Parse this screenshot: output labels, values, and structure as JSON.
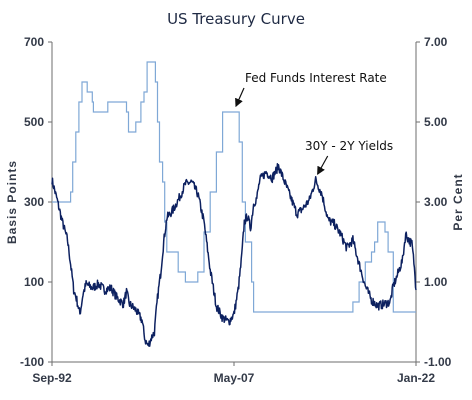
{
  "chart_data": {
    "type": "line",
    "title": "US Treasury Curve",
    "ylabel_left": "Basis Points",
    "ylabel_right": "Per Cent",
    "ylim_left": [
      -100,
      700
    ],
    "ylim_right": [
      -1.0,
      7.0
    ],
    "left_ticks": [
      "700",
      "500",
      "300",
      "100",
      "-100"
    ],
    "right_ticks": [
      "7.00",
      "5.00",
      "3.00",
      "1.00",
      "-1.00"
    ],
    "x_ticks": [
      "Sep-92",
      "May-07",
      "Jan-22"
    ],
    "x_range": [
      "1992-09",
      "2022-01"
    ],
    "grid": false,
    "series": [
      {
        "name": "30Y - 2Y Yields",
        "axis": "left",
        "color": "#0d2160",
        "points": [
          [
            "1992-09",
            355
          ],
          [
            "1993-02",
            305
          ],
          [
            "1993-07",
            250
          ],
          [
            "1993-12",
            205
          ],
          [
            "1994-03",
            145
          ],
          [
            "1994-06",
            80
          ],
          [
            "1994-09",
            55
          ],
          [
            "1994-12",
            20
          ],
          [
            "1995-03",
            70
          ],
          [
            "1995-06",
            95
          ],
          [
            "1995-09",
            90
          ],
          [
            "1995-12",
            85
          ],
          [
            "1996-06",
            95
          ],
          [
            "1996-12",
            80
          ],
          [
            "1997-06",
            85
          ],
          [
            "1997-12",
            60
          ],
          [
            "1998-06",
            45
          ],
          [
            "1998-09",
            75
          ],
          [
            "1998-12",
            45
          ],
          [
            "1999-06",
            30
          ],
          [
            "1999-12",
            5
          ],
          [
            "2000-03",
            -45
          ],
          [
            "2000-06",
            -60
          ],
          [
            "2000-09",
            -40
          ],
          [
            "2000-12",
            -25
          ],
          [
            "2001-03",
            60
          ],
          [
            "2001-06",
            120
          ],
          [
            "2001-09",
            200
          ],
          [
            "2001-12",
            260
          ],
          [
            "2002-06",
            280
          ],
          [
            "2002-12",
            310
          ],
          [
            "2003-06",
            345
          ],
          [
            "2003-12",
            350
          ],
          [
            "2004-06",
            320
          ],
          [
            "2004-12",
            250
          ],
          [
            "2005-06",
            130
          ],
          [
            "2005-12",
            40
          ],
          [
            "2006-06",
            10
          ],
          [
            "2006-12",
            0
          ],
          [
            "2007-05",
            20
          ],
          [
            "2007-09",
            80
          ],
          [
            "2007-12",
            150
          ],
          [
            "2008-03",
            250
          ],
          [
            "2008-06",
            265
          ],
          [
            "2008-09",
            235
          ],
          [
            "2008-12",
            295
          ],
          [
            "2009-03",
            310
          ],
          [
            "2009-06",
            355
          ],
          [
            "2009-12",
            375
          ],
          [
            "2010-06",
            360
          ],
          [
            "2010-12",
            390
          ],
          [
            "2011-06",
            350
          ],
          [
            "2011-12",
            310
          ],
          [
            "2012-06",
            270
          ],
          [
            "2012-12",
            285
          ],
          [
            "2013-06",
            305
          ],
          [
            "2013-12",
            355
          ],
          [
            "2014-06",
            320
          ],
          [
            "2014-12",
            255
          ],
          [
            "2015-06",
            245
          ],
          [
            "2015-12",
            220
          ],
          [
            "2016-06",
            185
          ],
          [
            "2016-12",
            205
          ],
          [
            "2017-06",
            145
          ],
          [
            "2017-12",
            90
          ],
          [
            "2018-06",
            55
          ],
          [
            "2018-12",
            40
          ],
          [
            "2019-06",
            45
          ],
          [
            "2019-12",
            50
          ],
          [
            "2020-03",
            90
          ],
          [
            "2020-06",
            110
          ],
          [
            "2020-12",
            155
          ],
          [
            "2021-03",
            220
          ],
          [
            "2021-06",
            205
          ],
          [
            "2021-09",
            195
          ],
          [
            "2021-11",
            150
          ],
          [
            "2022-01",
            80
          ]
        ]
      },
      {
        "name": "Fed Funds Interest Rate",
        "axis": "right",
        "color": "#7fa8d6",
        "points": [
          [
            "1992-09",
            3.0
          ],
          [
            "1994-01",
            3.0
          ],
          [
            "1994-03",
            3.25
          ],
          [
            "1994-05",
            4.0
          ],
          [
            "1994-08",
            4.75
          ],
          [
            "1994-11",
            5.5
          ],
          [
            "1995-02",
            6.0
          ],
          [
            "1995-07",
            5.75
          ],
          [
            "1995-12",
            5.5
          ],
          [
            "1996-01",
            5.25
          ],
          [
            "1997-03",
            5.5
          ],
          [
            "1998-09",
            5.25
          ],
          [
            "1998-11",
            4.75
          ],
          [
            "1999-06",
            5.0
          ],
          [
            "1999-11",
            5.5
          ],
          [
            "2000-02",
            5.75
          ],
          [
            "2000-05",
            6.5
          ],
          [
            "2001-01",
            6.0
          ],
          [
            "2001-03",
            5.0
          ],
          [
            "2001-05",
            4.0
          ],
          [
            "2001-08",
            3.5
          ],
          [
            "2001-10",
            2.5
          ],
          [
            "2001-12",
            1.75
          ],
          [
            "2002-11",
            1.25
          ],
          [
            "2003-06",
            1.0
          ],
          [
            "2004-06",
            1.25
          ],
          [
            "2004-12",
            2.25
          ],
          [
            "2005-06",
            3.25
          ],
          [
            "2005-12",
            4.25
          ],
          [
            "2006-06",
            5.25
          ],
          [
            "2007-08",
            5.25
          ],
          [
            "2007-10",
            4.5
          ],
          [
            "2008-01",
            3.0
          ],
          [
            "2008-04",
            2.0
          ],
          [
            "2008-10",
            1.0
          ],
          [
            "2008-12",
            0.25
          ],
          [
            "2015-12",
            0.25
          ],
          [
            "2016-12",
            0.5
          ],
          [
            "2017-06",
            1.0
          ],
          [
            "2017-12",
            1.5
          ],
          [
            "2018-06",
            1.75
          ],
          [
            "2018-09",
            2.0
          ],
          [
            "2018-12",
            2.5
          ],
          [
            "2019-07",
            2.25
          ],
          [
            "2019-10",
            1.75
          ],
          [
            "2020-03",
            0.25
          ],
          [
            "2022-01",
            0.25
          ]
        ]
      }
    ],
    "annotations": [
      {
        "text": "Fed Funds Interest Rate",
        "arrow_to": [
          "2007-05",
          5.25
        ],
        "series": 1
      },
      {
        "text": "30Y - 2Y Yields",
        "arrow_to": [
          "2013-12",
          355
        ],
        "series": 0
      }
    ]
  }
}
